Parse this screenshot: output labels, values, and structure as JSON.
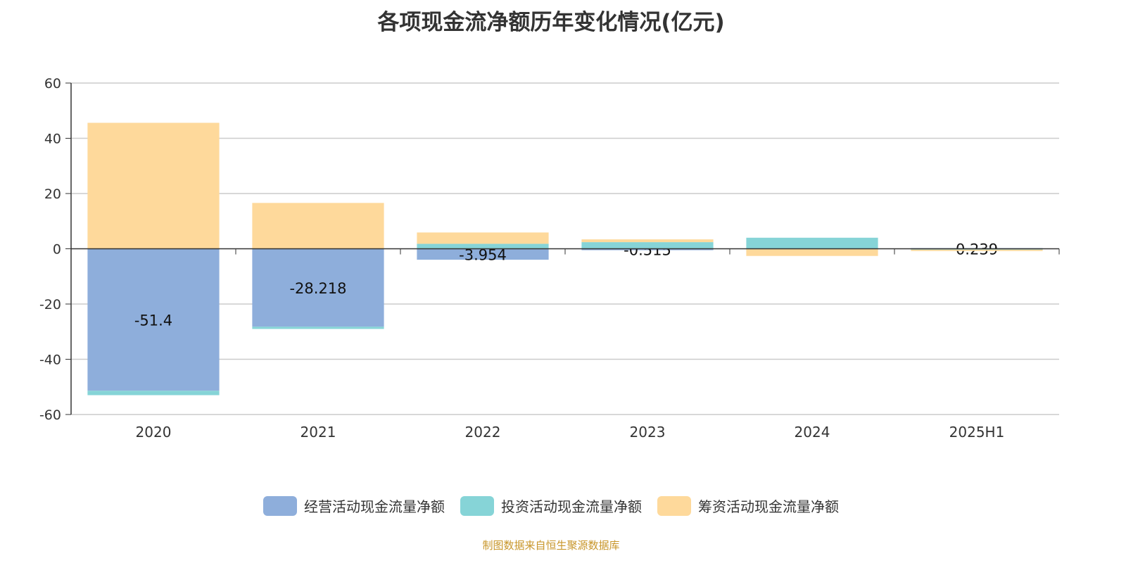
{
  "chart_data": {
    "type": "bar",
    "stacked": true,
    "title": "各项现金流净额历年变化情况(亿元)",
    "categories": [
      "2020",
      "2021",
      "2022",
      "2023",
      "2024",
      "2025H1"
    ],
    "ylim": [
      -60,
      60
    ],
    "yticks": [
      60,
      40,
      20,
      0,
      -20,
      -40,
      -60
    ],
    "grid": true,
    "legend_position": "bottom",
    "series": [
      {
        "name": "经营活动现金流量净额",
        "color": "#8eaedb",
        "values": [
          -51.4,
          -28.218,
          -3.954,
          -0.515,
          -0.1,
          0.239
        ],
        "labels": [
          "-51.4",
          "-28.218",
          "-3.954",
          "-0.515",
          "",
          "0.239"
        ]
      },
      {
        "name": "投资活动现金流量净额",
        "color": "#86d4d7",
        "values": [
          -1.6,
          -0.8,
          1.8,
          2.4,
          4.0,
          -0.3
        ]
      },
      {
        "name": "筹资活动现金流量净额",
        "color": "#fed99b",
        "values": [
          45.6,
          16.6,
          4.1,
          1.0,
          -2.5,
          -0.5
        ]
      }
    ]
  },
  "source": "制图数据来自恒生聚源数据库"
}
